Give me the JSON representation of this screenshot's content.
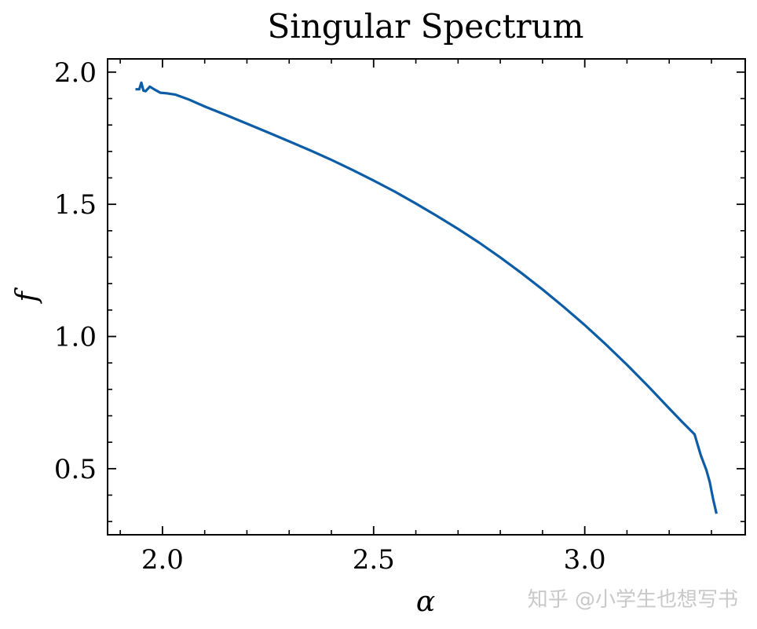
{
  "chart_data": {
    "type": "line",
    "title": "Singular Spectrum",
    "xlabel": "α",
    "ylabel": "f",
    "xlim": [
      1.87,
      3.38
    ],
    "ylim": [
      0.25,
      2.05
    ],
    "xticks": [
      2.0,
      2.5,
      3.0
    ],
    "xtick_labels": [
      "2.0",
      "2.5",
      "3.0"
    ],
    "yticks": [
      0.5,
      1.0,
      1.5,
      2.0
    ],
    "ytick_labels": [
      "0.5",
      "1.0",
      "1.5",
      "2.0"
    ],
    "x_minor_step": 0.1,
    "y_minor_step": 0.1,
    "grid": false,
    "series": [
      {
        "color": "#0c5da5",
        "x": [
          1.936,
          1.945,
          1.95,
          1.955,
          1.96,
          1.97,
          1.98,
          1.995,
          2.01,
          2.03,
          2.06,
          2.1,
          2.15,
          2.2,
          2.25,
          2.3,
          2.35,
          2.4,
          2.45,
          2.5,
          2.55,
          2.6,
          2.65,
          2.7,
          2.75,
          2.8,
          2.85,
          2.9,
          2.95,
          3.0,
          3.05,
          3.1,
          3.15,
          3.2,
          3.23,
          3.26,
          3.275,
          3.282,
          3.288,
          3.296,
          3.304,
          3.312
        ],
        "y": [
          1.935,
          1.935,
          1.96,
          1.93,
          1.928,
          1.945,
          1.935,
          1.922,
          1.92,
          1.915,
          1.898,
          1.87,
          1.838,
          1.805,
          1.772,
          1.738,
          1.704,
          1.668,
          1.63,
          1.59,
          1.548,
          1.503,
          1.456,
          1.407,
          1.355,
          1.299,
          1.24,
          1.178,
          1.112,
          1.043,
          0.97,
          0.893,
          0.812,
          0.728,
          0.678,
          0.63,
          0.55,
          0.52,
          0.495,
          0.45,
          0.385,
          0.33
        ]
      }
    ]
  },
  "watermark": "知乎 @小学生也想写书",
  "colors": {
    "line": "#0c5da5",
    "axis": "#000000",
    "background": "#ffffff"
  }
}
